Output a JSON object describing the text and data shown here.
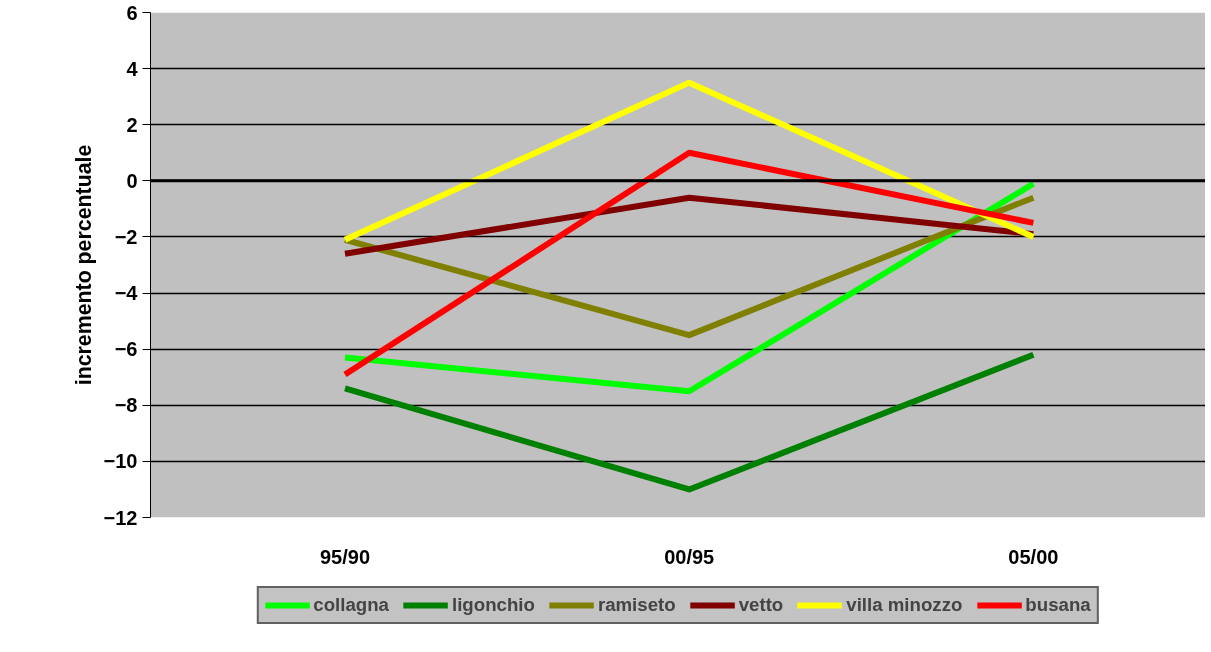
{
  "chart_data": {
    "type": "line",
    "ylabel": "incremento percentuale",
    "categories": [
      "95/90",
      "00/95",
      "05/00"
    ],
    "series": [
      {
        "name": "collagna",
        "color": "#00ff00",
        "values": [
          -6.3,
          -7.5,
          -0.1
        ]
      },
      {
        "name": "ligonchio",
        "color": "#008000",
        "values": [
          -7.4,
          -11.0,
          -6.2
        ]
      },
      {
        "name": "ramiseto",
        "color": "#808000",
        "values": [
          -2.1,
          -5.5,
          -0.6
        ]
      },
      {
        "name": "vetto",
        "color": "#800000",
        "values": [
          -2.6,
          -0.6,
          -1.9
        ]
      },
      {
        "name": "villa minozzo",
        "color": "#ffff00",
        "values": [
          -2.1,
          3.5,
          -2.0
        ]
      },
      {
        "name": "busana",
        "color": "#ff0000",
        "values": [
          -6.9,
          1.0,
          -1.5
        ]
      }
    ],
    "ylim": [
      -12,
      6
    ],
    "yticks": [
      -12,
      -10,
      -8,
      -6,
      -4,
      -2,
      0,
      2,
      4,
      6
    ],
    "ref_lines": [
      {
        "axis": "y",
        "value": 0,
        "label": null,
        "color": "#000000"
      }
    ],
    "grid": "y",
    "legend": "bottom",
    "marker": "none",
    "line_style": "solid"
  }
}
